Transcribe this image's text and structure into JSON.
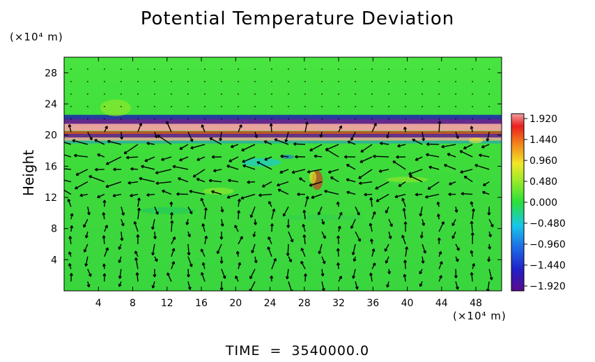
{
  "chart_data": {
    "type": "heatmap",
    "title": "Potential Temperature Deviation",
    "ylabel": "Height",
    "y_unit": "(×10⁴ m)",
    "x_unit": "(×10⁴ m)",
    "x_ticks": [
      "4",
      "8",
      "12",
      "16",
      "20",
      "24",
      "28",
      "32",
      "36",
      "40",
      "44",
      "48"
    ],
    "x_tick_values": [
      4,
      8,
      12,
      16,
      20,
      24,
      28,
      32,
      36,
      40,
      44,
      48
    ],
    "y_ticks": [
      "4",
      "8",
      "12",
      "16",
      "20",
      "24",
      "28"
    ],
    "y_tick_values": [
      4,
      8,
      12,
      16,
      20,
      24,
      28
    ],
    "xlim": [
      0,
      51
    ],
    "ylim": [
      0,
      30
    ],
    "colorbar": {
      "labels": [
        "1.920",
        "1.440",
        "0.960",
        "0.480",
        "0.000",
        "−0.480",
        "−0.960",
        "−1.440",
        "−1.920"
      ],
      "range": [
        -1.92,
        1.92
      ]
    },
    "overlay": "wind vectors",
    "colors": {
      "background_field": "#3ede3a",
      "positive_high": "#f08a8a",
      "negative_low": "#6a0a9a",
      "neutral": "#44e63c"
    }
  },
  "footer": {
    "time_label": "TIME",
    "equals": "=",
    "time_value": "3540000.0"
  }
}
